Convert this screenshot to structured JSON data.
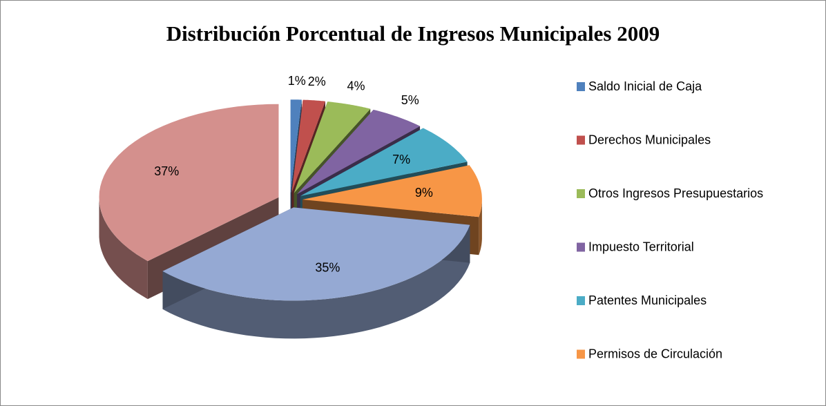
{
  "chart_data": {
    "type": "pie",
    "title": "Distribución Porcentual de Ingresos Municipales 2009",
    "categories": [
      "Saldo Inicial de Caja",
      "Derechos Municipales",
      "Otros Ingresos Presupuestarios",
      "Impuesto Territorial",
      "Patentes Municipales",
      "Permisos de Circulación",
      null,
      null
    ],
    "values": [
      1,
      2,
      4,
      5,
      7,
      9,
      35,
      37
    ],
    "value_labels": [
      "1%",
      "2%",
      "4%",
      "5%",
      "7%",
      "9%",
      "35%",
      "37%"
    ],
    "colors": [
      "#4f81bd",
      "#c0504d",
      "#9bbb59",
      "#8064a2",
      "#4bacc6",
      "#f79646",
      "#95a9d3",
      "#d4908d"
    ]
  }
}
